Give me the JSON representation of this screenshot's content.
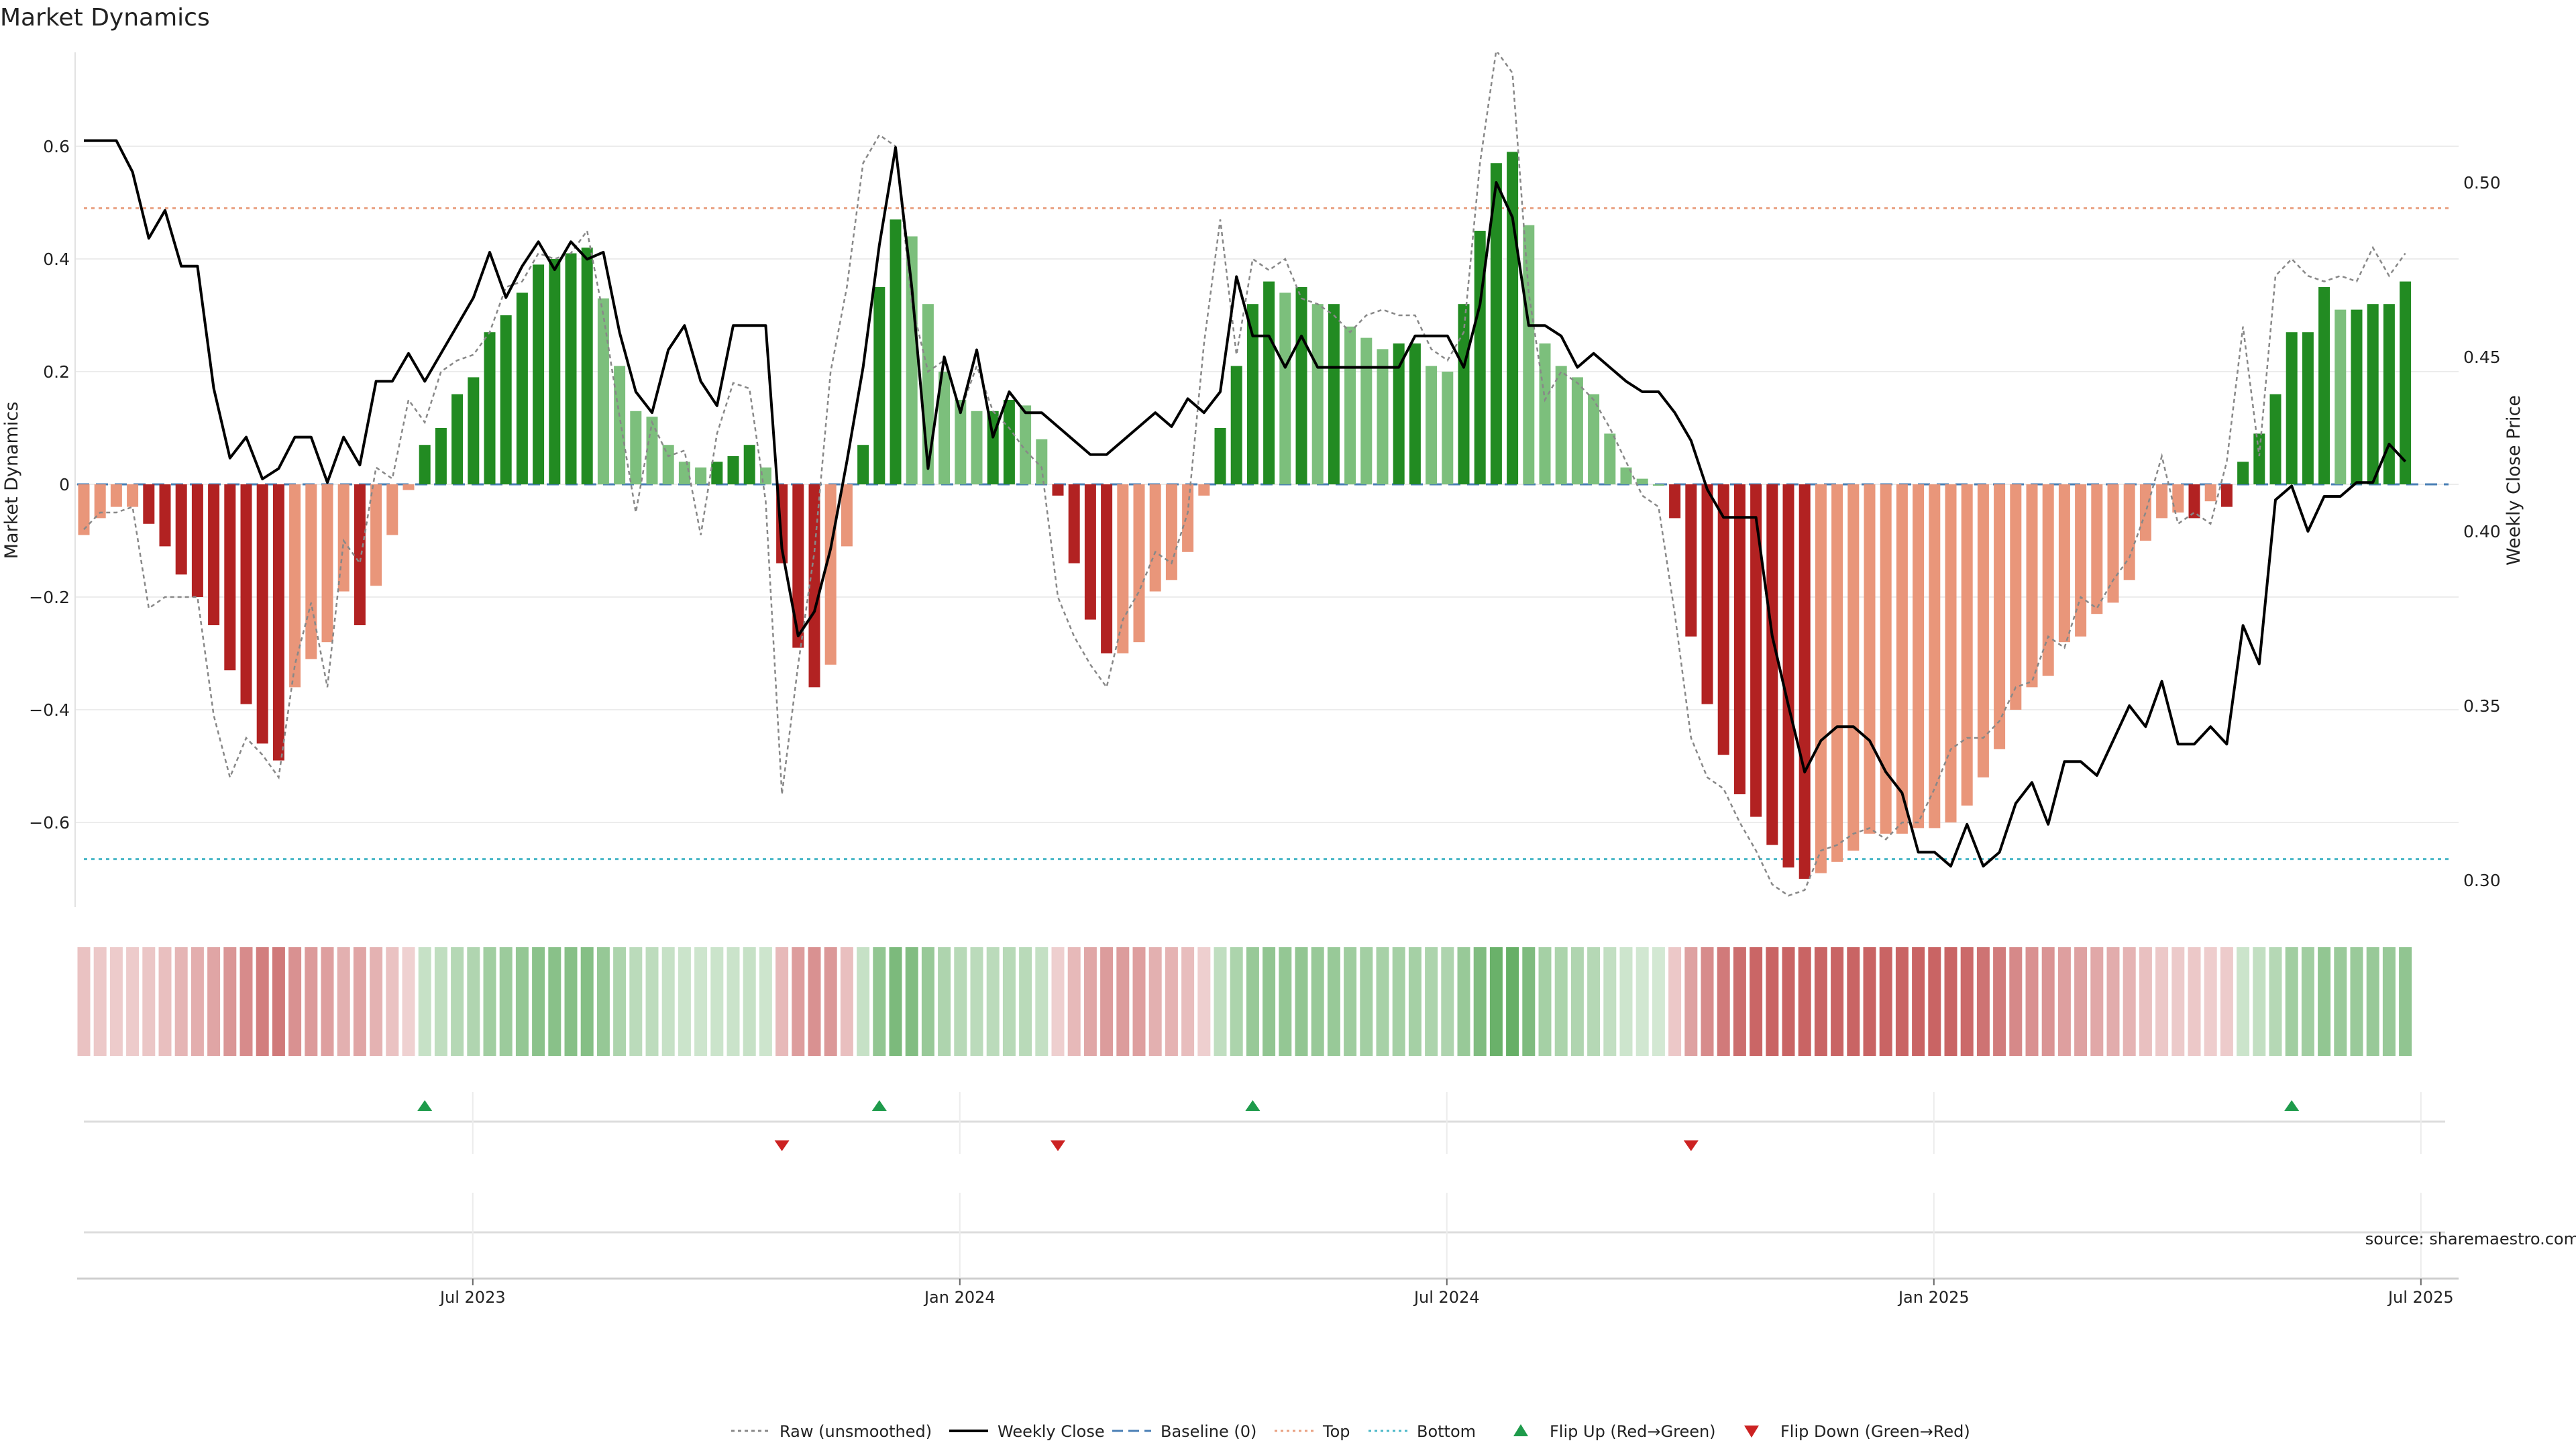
{
  "chart_data": {
    "type": "bar",
    "title": "Market Dynamics",
    "ylabel": "Market Dynamics",
    "y2label": "Weekly Close Price",
    "source": "source: sharemaestro.com",
    "ylim": [
      -0.76,
      0.76
    ],
    "y2lim": [
      0.295,
      0.53
    ],
    "yticks": [
      0.6,
      0.4,
      0.2,
      0,
      -0.2,
      -0.4,
      -0.6
    ],
    "ytick_labels": [
      "0.6",
      "0.4",
      "0.2",
      "0",
      "−0.2",
      "−0.4",
      "−0.6"
    ],
    "y2ticks": [
      0.5,
      0.45,
      0.4,
      0.35,
      0.3
    ],
    "y2tick_labels": [
      "0.50",
      "0.45",
      "0.40",
      "0.35",
      "0.30"
    ],
    "xticks": [
      {
        "label": "Jul 2023",
        "index": 24
      },
      {
        "label": "Jan 2024",
        "index": 54
      },
      {
        "label": "Jul 2024",
        "index": 84
      },
      {
        "label": "Jan 2025",
        "index": 114
      },
      {
        "label": "Jul 2025",
        "index": 144
      }
    ],
    "top_line": 0.49,
    "bottom_line": -0.665,
    "baseline": 0,
    "colors": {
      "strong_green": "#228b22",
      "light_green": "#7cbf7c",
      "strong_red": "#b22222",
      "light_red": "#e9967a",
      "close": "#000000",
      "raw": "#888888",
      "baseline": "#4a7fb5",
      "top": "#e9a080",
      "bottom": "#4bb8c8",
      "flip_up": "#1e9b4b",
      "flip_down": "#cc2222"
    },
    "values": [
      -0.09,
      -0.06,
      -0.04,
      -0.04,
      -0.07,
      -0.11,
      -0.16,
      -0.2,
      -0.25,
      -0.33,
      -0.39,
      -0.46,
      -0.49,
      -0.36,
      -0.31,
      -0.28,
      -0.19,
      -0.25,
      -0.18,
      -0.09,
      -0.01,
      0.07,
      0.1,
      0.16,
      0.19,
      0.27,
      0.3,
      0.34,
      0.39,
      0.4,
      0.41,
      0.42,
      0.33,
      0.21,
      0.13,
      0.12,
      0.07,
      0.04,
      0.03,
      0.04,
      0.05,
      0.07,
      0.03,
      -0.14,
      -0.29,
      -0.36,
      -0.32,
      -0.11,
      0.07,
      0.35,
      0.47,
      0.44,
      0.32,
      0.2,
      0.15,
      0.13,
      0.13,
      0.15,
      0.14,
      0.08,
      -0.02,
      -0.14,
      -0.24,
      -0.3,
      -0.3,
      -0.28,
      -0.19,
      -0.17,
      -0.12,
      -0.02,
      0.1,
      0.21,
      0.32,
      0.36,
      0.34,
      0.35,
      0.32,
      0.32,
      0.28,
      0.26,
      0.24,
      0.25,
      0.25,
      0.21,
      0.2,
      0.32,
      0.45,
      0.57,
      0.59,
      0.46,
      0.25,
      0.21,
      0.19,
      0.16,
      0.09,
      0.03,
      0.01,
      0.0,
      -0.06,
      -0.27,
      -0.39,
      -0.48,
      -0.55,
      -0.59,
      -0.64,
      -0.68,
      -0.7,
      -0.69,
      -0.67,
      -0.65,
      -0.62,
      -0.62,
      -0.62,
      -0.61,
      -0.61,
      -0.6,
      -0.57,
      -0.52,
      -0.47,
      -0.4,
      -0.36,
      -0.34,
      -0.28,
      -0.27,
      -0.23,
      -0.21,
      -0.17,
      -0.1,
      -0.06,
      -0.05,
      -0.06,
      -0.03,
      -0.04,
      0.04,
      0.09,
      0.16,
      0.27,
      0.27,
      0.35,
      0.31,
      0.31,
      0.32,
      0.32,
      0.36
    ],
    "weekly_close": [
      0.512,
      0.512,
      0.512,
      0.503,
      0.484,
      0.492,
      0.476,
      0.476,
      0.441,
      0.421,
      0.427,
      0.415,
      0.418,
      0.427,
      0.427,
      0.414,
      0.427,
      0.419,
      0.443,
      0.443,
      0.451,
      0.443,
      0.451,
      0.459,
      0.467,
      0.48,
      0.467,
      0.476,
      0.483,
      0.475,
      0.483,
      0.478,
      0.48,
      0.457,
      0.44,
      0.434,
      0.452,
      0.459,
      0.443,
      0.436,
      0.459,
      0.459,
      0.459,
      0.395,
      0.37,
      0.377,
      0.395,
      0.42,
      0.447,
      0.482,
      0.51,
      0.47,
      0.418,
      0.45,
      0.434,
      0.452,
      0.427,
      0.44,
      0.434,
      0.434,
      0.43,
      0.426,
      0.422,
      0.422,
      0.426,
      0.43,
      0.434,
      0.43,
      0.438,
      0.434,
      0.44,
      0.473,
      0.456,
      0.456,
      0.447,
      0.456,
      0.447,
      0.447,
      0.447,
      0.447,
      0.447,
      0.447,
      0.456,
      0.456,
      0.456,
      0.447,
      0.465,
      0.5,
      0.49,
      0.459,
      0.459,
      0.456,
      0.447,
      0.451,
      0.447,
      0.443,
      0.44,
      0.44,
      0.434,
      0.426,
      0.412,
      0.404,
      0.404,
      0.404,
      0.37,
      0.35,
      0.331,
      0.34,
      0.344,
      0.344,
      0.34,
      0.331,
      0.325,
      0.308,
      0.308,
      0.304,
      0.316,
      0.304,
      0.308,
      0.322,
      0.328,
      0.316,
      0.334,
      0.334,
      0.33,
      0.34,
      0.35,
      0.344,
      0.357,
      0.339,
      0.339,
      0.344,
      0.339,
      0.373,
      0.362,
      0.409,
      0.413,
      0.4,
      0.41,
      0.41,
      0.414,
      0.414,
      0.425,
      0.42
    ],
    "raw": [
      -0.08,
      -0.05,
      -0.05,
      -0.04,
      -0.22,
      -0.2,
      -0.2,
      -0.2,
      -0.41,
      -0.52,
      -0.45,
      -0.48,
      -0.52,
      -0.32,
      -0.21,
      -0.36,
      -0.1,
      -0.14,
      0.03,
      0.01,
      0.15,
      0.11,
      0.2,
      0.22,
      0.23,
      0.27,
      0.35,
      0.36,
      0.41,
      0.4,
      0.41,
      0.45,
      0.3,
      0.12,
      -0.05,
      0.11,
      0.05,
      0.06,
      -0.09,
      0.09,
      0.18,
      0.17,
      -0.03,
      -0.55,
      -0.32,
      -0.12,
      0.2,
      0.35,
      0.57,
      0.62,
      0.6,
      0.32,
      0.2,
      0.22,
      0.13,
      0.21,
      0.13,
      0.1,
      0.06,
      0.03,
      -0.2,
      -0.27,
      -0.32,
      -0.36,
      -0.24,
      -0.19,
      -0.12,
      -0.14,
      -0.05,
      0.25,
      0.47,
      0.23,
      0.4,
      0.38,
      0.4,
      0.33,
      0.32,
      0.3,
      0.27,
      0.3,
      0.31,
      0.3,
      0.3,
      0.24,
      0.22,
      0.27,
      0.57,
      0.77,
      0.73,
      0.34,
      0.15,
      0.2,
      0.18,
      0.15,
      0.1,
      0.04,
      -0.02,
      -0.04,
      -0.23,
      -0.45,
      -0.52,
      -0.54,
      -0.6,
      -0.65,
      -0.71,
      -0.73,
      -0.72,
      -0.65,
      -0.64,
      -0.62,
      -0.61,
      -0.63,
      -0.6,
      -0.6,
      -0.54,
      -0.47,
      -0.45,
      -0.45,
      -0.42,
      -0.36,
      -0.35,
      -0.27,
      -0.29,
      -0.2,
      -0.22,
      -0.17,
      -0.13,
      -0.05,
      0.05,
      -0.07,
      -0.05,
      -0.07,
      0.04,
      0.28,
      0.05,
      0.37,
      0.4,
      0.37,
      0.36,
      0.37,
      0.36,
      0.42,
      0.37,
      0.41
    ],
    "flip_up_indices": [
      21,
      49,
      72,
      136
    ],
    "flip_down_indices": [
      43,
      60,
      99
    ],
    "legend": [
      {
        "label": "Raw (unsmoothed)",
        "style": "dotted-line"
      },
      {
        "label": "Weekly Close",
        "style": "solid-line"
      },
      {
        "label": "Baseline (0)",
        "style": "dashed-line"
      },
      {
        "label": "Top",
        "style": "dotted-line"
      },
      {
        "label": "Bottom",
        "style": "dotted-line"
      },
      {
        "label": "Flip Up (Red→Green)",
        "style": "up-triangle"
      },
      {
        "label": "Flip Down (Green→Red)",
        "style": "down-triangle"
      }
    ],
    "legend_position": "bottom-center",
    "grid": true
  }
}
